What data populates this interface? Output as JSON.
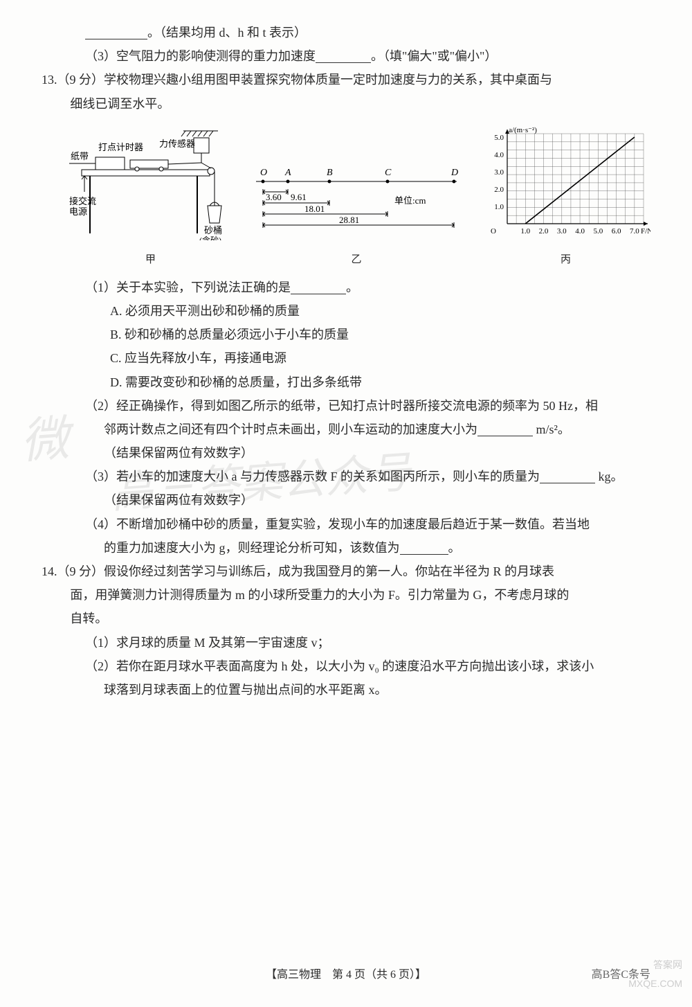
{
  "q12": {
    "line_blank_suffix": "。（结果均用 d、h 和 t 表示）",
    "part3_pre": "（3）空气阻力的影响使测得的重力加速度",
    "part3_post": "。（填\"偏大\"或\"偏小\"）"
  },
  "q13": {
    "num": "13.",
    "score": "（9 分）",
    "stem1": "学校物理兴趣小组用图甲装置探究物体质量一定时加速度与力的关系，其中桌面与",
    "stem2": "细线已调至水平。",
    "fig_jia": {
      "caption": "甲",
      "labels": {
        "tape": "纸带",
        "timer": "打点计时器",
        "sensor": "力传感器",
        "ac": "接交流\n电源",
        "bucket": "砂桶\n（含砂）"
      }
    },
    "fig_yi": {
      "caption": "乙",
      "points": [
        "O",
        "A",
        "B",
        "C",
        "D"
      ],
      "d1": "3.60",
      "d2": "9.61",
      "d3": "18.01",
      "d4": "28.81",
      "unit": "单位:cm"
    },
    "fig_bing": {
      "caption": "丙",
      "type": "line",
      "ylabel": "a/(m·s⁻²)",
      "xlabel": "F/N",
      "xlim": [
        0,
        7.5
      ],
      "ylim": [
        0,
        5.2
      ],
      "xticks": [
        1.0,
        2.0,
        3.0,
        4.0,
        5.0,
        6.0,
        7.0
      ],
      "yticks": [
        1.0,
        2.0,
        3.0,
        4.0,
        5.0
      ],
      "line_x": [
        1.0,
        7.0
      ],
      "line_y": [
        0.0,
        5.0
      ],
      "line_color": "#000000",
      "grid_color": "#555555",
      "grid_cols": 15,
      "grid_rows": 11,
      "background_color": "#ffffff"
    },
    "p1": "（1）关于本实验，下列说法正确的是",
    "p1_post": "。",
    "optA": "A. 必须用天平测出砂和砂桶的质量",
    "optB": "B. 砂和砂桶的总质量必须远小于小车的质量",
    "optC": "C. 应当先释放小车，再接通电源",
    "optD": "D. 需要改变砂和砂桶的总质量，打出多条纸带",
    "p2a": "（2）经正确操作，得到如图乙所示的纸带，已知打点计时器所接交流电源的频率为 50 Hz，相",
    "p2b_pre": "邻两计数点之间还有四个计时点未画出，则小车运动的加速度大小为",
    "p2b_unit": " m/s²。",
    "p2c": "（结果保留两位有效数字）",
    "p3_pre": "（3）若小车的加速度大小 a 与力传感器示数 F 的关系如图丙所示，则小车的质量为",
    "p3_unit": " kg。",
    "p3b": "（结果保留两位有效数字）",
    "p4a": "（4）不断增加砂桶中砂的质量，重复实验，发现小车的加速度最后趋近于某一数值。若当地",
    "p4b_pre": "的重力加速度大小为 g，则经理论分析可知，该数值为",
    "p4b_post": "。"
  },
  "q14": {
    "num": "14.",
    "score": "（9 分）",
    "stem1": "假设你经过刻苦学习与训练后，成为我国登月的第一人。你站在半径为 R 的月球表",
    "stem2": "面，用弹簧测力计测得质量为 m 的小球所受重力的大小为 F。引力常量为 G，不考虑月球的",
    "stem3": "自转。",
    "p1": "（1）求月球的质量 M 及其第一宇宙速度 v；",
    "p2a": "（2）若你在距月球水平表面高度为 h 处，以大小为 v₀ 的速度沿水平方向抛出该小球，求该小",
    "p2b": "球落到月球表面上的位置与抛出点间的水平距离 x。"
  },
  "watermarks": {
    "w1": "微",
    "w2": "高三答案公众号"
  },
  "footer": {
    "center": "【高三物理　第 4 页（共 6 页）】",
    "right": "高B答C条号"
  },
  "corner": "答案网\nMXQE.COM"
}
